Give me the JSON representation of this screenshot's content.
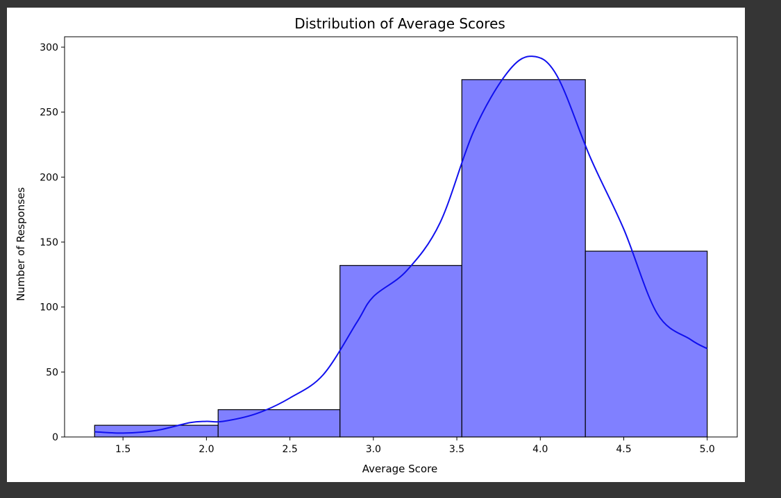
{
  "chart_data": {
    "type": "histogram",
    "title": "Distribution of Average Scores",
    "xlabel": "Average Score",
    "ylabel": "Number of Responses",
    "xlim": [
      1.15,
      5.18
    ],
    "ylim": [
      0,
      308
    ],
    "xticks": [
      "1.5",
      "2.0",
      "2.5",
      "3.0",
      "3.5",
      "4.0",
      "4.5",
      "5.0"
    ],
    "xtick_values": [
      1.5,
      2.0,
      2.5,
      3.0,
      3.5,
      4.0,
      4.5,
      5.0
    ],
    "yticks": [
      "0",
      "50",
      "100",
      "150",
      "200",
      "250",
      "300"
    ],
    "ytick_values": [
      0,
      50,
      100,
      150,
      200,
      250,
      300
    ],
    "bins": [
      {
        "x0": 1.33,
        "x1": 2.07,
        "count": 9
      },
      {
        "x0": 2.07,
        "x1": 2.8,
        "count": 21
      },
      {
        "x0": 2.8,
        "x1": 3.53,
        "count": 132
      },
      {
        "x0": 3.53,
        "x1": 4.27,
        "count": 275
      },
      {
        "x0": 4.27,
        "x1": 5.0,
        "count": 143
      }
    ],
    "kde": {
      "x": [
        1.33,
        1.5,
        1.7,
        1.9,
        2.0,
        2.1,
        2.3,
        2.5,
        2.7,
        2.9,
        3.0,
        3.2,
        3.4,
        3.6,
        3.8,
        3.95,
        4.1,
        4.3,
        4.5,
        4.7,
        4.9,
        5.0
      ],
      "y": [
        4,
        3,
        5,
        11,
        12,
        12,
        18,
        30,
        48,
        88,
        108,
        128,
        165,
        235,
        280,
        293,
        278,
        215,
        160,
        95,
        75,
        68
      ]
    },
    "bar_color": "#8080ff",
    "bar_edge_color": "#000000",
    "kde_color": "#1010ee",
    "grid": false,
    "legend": false
  }
}
